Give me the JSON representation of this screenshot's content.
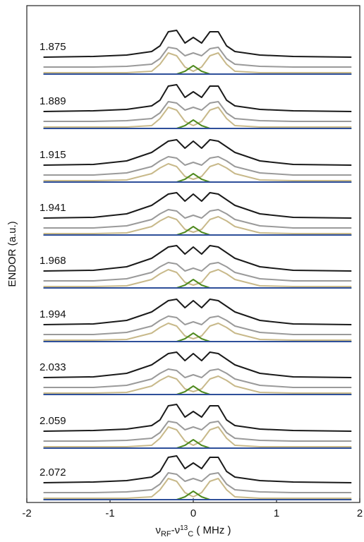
{
  "chart_data": {
    "type": "line",
    "xlabel_parts": [
      "ν",
      "RF",
      "-ν",
      "13",
      "C",
      " ( MHz )"
    ],
    "ylabel": "ENDOR (a.u.)",
    "xlim": [
      -2,
      2
    ],
    "xticks": [
      -2,
      -1,
      0,
      1,
      2
    ],
    "ylim": [
      0,
      704
    ],
    "x": [
      -1.8,
      -1.2,
      -0.8,
      -0.5,
      -0.4,
      -0.3,
      -0.2,
      -0.1,
      0,
      0.1,
      0.2,
      0.3,
      0.4,
      0.5,
      0.8,
      1.2,
      1.9
    ],
    "panels": [
      {
        "label": "1.875",
        "series": [
          {
            "color": "#1a1a1a",
            "values": [
              631,
              632,
              634,
              639,
              647,
              667,
              669,
              651,
              659,
              651,
              667,
              667,
              647,
              639,
              634,
              632,
              631
            ]
          },
          {
            "color": "#9a9a9a",
            "values": [
              617,
              617,
              618,
              621,
              629,
              645,
              643,
              633,
              637,
              633,
              643,
              645,
              629,
              621,
              618,
              617,
              617
            ]
          },
          {
            "color": "#c8b98a",
            "values": [
              609,
              609,
              609,
              611,
              621,
              637,
              633,
              617,
              611,
              617,
              633,
              637,
              621,
              611,
              609,
              609,
              609
            ]
          },
          {
            "color": "#4f8a1f",
            "values": [
              607,
              607,
              607,
              607,
              607,
              607,
              607,
              611,
              619,
              611,
              607,
              607,
              607,
              607,
              607,
              607,
              607
            ]
          },
          {
            "color": "#2e4f9a",
            "values": [
              607,
              607,
              607,
              607,
              607,
              607,
              607,
              607,
              607,
              607,
              607,
              607,
              607,
              607,
              607,
              607,
              607
            ]
          }
        ]
      },
      {
        "label": "1.889",
        "series": [
          {
            "color": "#1a1a1a",
            "values": [
              554,
              555,
              557,
              562,
              570,
              590,
              592,
              574,
              582,
              574,
              590,
              590,
              570,
              562,
              557,
              555,
              554
            ]
          },
          {
            "color": "#9a9a9a",
            "values": [
              540,
              540,
              541,
              544,
              552,
              568,
              566,
              556,
              560,
              556,
              566,
              568,
              552,
              544,
              541,
              540,
              540
            ]
          },
          {
            "color": "#c8b98a",
            "values": [
              532,
              532,
              532,
              534,
              544,
              560,
              556,
              540,
              534,
              540,
              556,
              560,
              544,
              534,
              532,
              532,
              532
            ]
          },
          {
            "color": "#4f8a1f",
            "values": [
              530,
              530,
              530,
              530,
              530,
              530,
              530,
              534,
              542,
              534,
              530,
              530,
              530,
              530,
              530,
              530,
              530
            ]
          },
          {
            "color": "#2e4f9a",
            "values": [
              530,
              530,
              530,
              530,
              530,
              530,
              530,
              530,
              530,
              530,
              530,
              530,
              530,
              530,
              530,
              530,
              530
            ]
          }
        ]
      },
      {
        "label": "1.915",
        "series": [
          {
            "color": "#1a1a1a",
            "values": [
              478,
              479,
              484,
              496,
              504,
              512,
              514,
              502,
              512,
              502,
              514,
              512,
              504,
              496,
              484,
              479,
              478
            ]
          },
          {
            "color": "#9a9a9a",
            "values": [
              464,
              464,
              467,
              476,
              484,
              490,
              488,
              478,
              482,
              478,
              488,
              490,
              484,
              476,
              467,
              464,
              464
            ]
          },
          {
            "color": "#c8b98a",
            "values": [
              456,
              456,
              457,
              466,
              474,
              480,
              476,
              462,
              458,
              462,
              476,
              480,
              474,
              466,
              457,
              456,
              456
            ]
          },
          {
            "color": "#4f8a1f",
            "values": [
              454,
              454,
              454,
              454,
              454,
              454,
              454,
              458,
              466,
              458,
              454,
              454,
              454,
              454,
              454,
              454,
              454
            ]
          },
          {
            "color": "#2e4f9a",
            "values": [
              454,
              454,
              454,
              454,
              454,
              454,
              454,
              454,
              454,
              454,
              454,
              454,
              454,
              454,
              454,
              454,
              454
            ]
          }
        ]
      },
      {
        "label": "1.941",
        "series": [
          {
            "color": "#1a1a1a",
            "values": [
              403,
              404,
              409,
              421,
              429,
              437,
              439,
              427,
              437,
              427,
              439,
              437,
              429,
              421,
              409,
              404,
              403
            ]
          },
          {
            "color": "#9a9a9a",
            "values": [
              389,
              389,
              392,
              401,
              409,
              415,
              413,
              403,
              407,
              403,
              413,
              415,
              409,
              401,
              392,
              389,
              389
            ]
          },
          {
            "color": "#c8b98a",
            "values": [
              381,
              381,
              382,
              391,
              399,
              405,
              401,
              387,
              383,
              387,
              401,
              405,
              399,
              391,
              382,
              381,
              381
            ]
          },
          {
            "color": "#4f8a1f",
            "values": [
              379,
              379,
              379,
              379,
              379,
              379,
              379,
              383,
              391,
              383,
              379,
              379,
              379,
              379,
              379,
              379,
              379
            ]
          },
          {
            "color": "#2e4f9a",
            "values": [
              379,
              379,
              379,
              379,
              379,
              379,
              379,
              379,
              379,
              379,
              379,
              379,
              379,
              379,
              379,
              379,
              379
            ]
          }
        ]
      },
      {
        "label": "1.968",
        "series": [
          {
            "color": "#1a1a1a",
            "values": [
              328,
              329,
              334,
              346,
              354,
              362,
              364,
              352,
              362,
              352,
              364,
              362,
              354,
              346,
              334,
              329,
              328
            ]
          },
          {
            "color": "#9a9a9a",
            "values": [
              314,
              314,
              317,
              326,
              334,
              340,
              338,
              328,
              332,
              328,
              338,
              340,
              334,
              326,
              317,
              314,
              314
            ]
          },
          {
            "color": "#c8b98a",
            "values": [
              306,
              306,
              307,
              316,
              324,
              330,
              326,
              312,
              308,
              312,
              326,
              330,
              324,
              316,
              307,
              306,
              306
            ]
          },
          {
            "color": "#4f8a1f",
            "values": [
              304,
              304,
              304,
              304,
              304,
              304,
              304,
              308,
              316,
              308,
              304,
              304,
              304,
              304,
              304,
              304,
              304
            ]
          },
          {
            "color": "#2e4f9a",
            "values": [
              304,
              304,
              304,
              304,
              304,
              304,
              304,
              304,
              304,
              304,
              304,
              304,
              304,
              304,
              304,
              304,
              304
            ]
          }
        ]
      },
      {
        "label": "1.994",
        "series": [
          {
            "color": "#1a1a1a",
            "values": [
              252,
              253,
              258,
              270,
              278,
              286,
              288,
              276,
              286,
              276,
              288,
              286,
              278,
              270,
              258,
              253,
              252
            ]
          },
          {
            "color": "#9a9a9a",
            "values": [
              238,
              238,
              241,
              250,
              258,
              264,
              262,
              252,
              256,
              252,
              262,
              264,
              258,
              250,
              241,
              238,
              238
            ]
          },
          {
            "color": "#c8b98a",
            "values": [
              230,
              230,
              231,
              240,
              248,
              254,
              250,
              236,
              232,
              236,
              250,
              254,
              248,
              240,
              231,
              230,
              230
            ]
          },
          {
            "color": "#4f8a1f",
            "values": [
              228,
              228,
              228,
              228,
              228,
              228,
              228,
              232,
              240,
              232,
              228,
              228,
              228,
              228,
              228,
              228,
              228
            ]
          },
          {
            "color": "#2e4f9a",
            "values": [
              228,
              228,
              228,
              228,
              228,
              228,
              228,
              228,
              228,
              228,
              228,
              228,
              228,
              228,
              228,
              228,
              228
            ]
          }
        ]
      },
      {
        "label": "2.033",
        "series": [
          {
            "color": "#1a1a1a",
            "values": [
              177,
              178,
              183,
              195,
              203,
              211,
              213,
              201,
              211,
              201,
              213,
              211,
              203,
              195,
              183,
              178,
              177
            ]
          },
          {
            "color": "#9a9a9a",
            "values": [
              163,
              163,
              166,
              175,
              183,
              189,
              187,
              177,
              181,
              177,
              187,
              189,
              183,
              175,
              166,
              163,
              163
            ]
          },
          {
            "color": "#c8b98a",
            "values": [
              155,
              155,
              156,
              165,
              173,
              179,
              175,
              161,
              157,
              161,
              175,
              179,
              173,
              165,
              156,
              155,
              155
            ]
          },
          {
            "color": "#4f8a1f",
            "values": [
              153,
              153,
              153,
              153,
              153,
              153,
              153,
              157,
              165,
              157,
              153,
              153,
              153,
              153,
              153,
              153,
              153
            ]
          },
          {
            "color": "#2e4f9a",
            "values": [
              153,
              153,
              153,
              153,
              153,
              153,
              153,
              153,
              153,
              153,
              153,
              153,
              153,
              153,
              153,
              153,
              153
            ]
          }
        ]
      },
      {
        "label": "2.059",
        "series": [
          {
            "color": "#1a1a1a",
            "values": [
              101,
              102,
              104,
              109,
              117,
              137,
              139,
              121,
              129,
              121,
              137,
              137,
              117,
              109,
              104,
              102,
              101
            ]
          },
          {
            "color": "#9a9a9a",
            "values": [
              87,
              87,
              88,
              91,
              99,
              115,
              113,
              103,
              107,
              103,
              113,
              115,
              99,
              91,
              88,
              87,
              87
            ]
          },
          {
            "color": "#c8b98a",
            "values": [
              79,
              79,
              79,
              81,
              91,
              107,
              103,
              87,
              81,
              87,
              103,
              107,
              91,
              81,
              79,
              79,
              79
            ]
          },
          {
            "color": "#4f8a1f",
            "values": [
              77,
              77,
              77,
              77,
              77,
              77,
              77,
              81,
              89,
              81,
              77,
              77,
              77,
              77,
              77,
              77,
              77
            ]
          },
          {
            "color": "#2e4f9a",
            "values": [
              77,
              77,
              77,
              77,
              77,
              77,
              77,
              77,
              77,
              77,
              77,
              77,
              77,
              77,
              77,
              77,
              77
            ]
          }
        ]
      },
      {
        "label": "2.072",
        "series": [
          {
            "color": "#1a1a1a",
            "values": [
              28,
              29,
              31,
              36,
              44,
              64,
              66,
              48,
              56,
              48,
              64,
              64,
              44,
              36,
              31,
              29,
              28
            ]
          },
          {
            "color": "#9a9a9a",
            "values": [
              14,
              14,
              15,
              18,
              26,
              42,
              40,
              30,
              34,
              30,
              40,
              42,
              26,
              18,
              15,
              14,
              14
            ]
          },
          {
            "color": "#c8b98a",
            "values": [
              6,
              6,
              6,
              8,
              18,
              34,
              30,
              14,
              8,
              14,
              30,
              34,
              18,
              8,
              6,
              6,
              6
            ]
          },
          {
            "color": "#4f8a1f",
            "values": [
              4,
              4,
              4,
              4,
              4,
              4,
              4,
              8,
              16,
              8,
              4,
              4,
              4,
              4,
              4,
              4,
              4
            ]
          },
          {
            "color": "#2e4f9a",
            "values": [
              4,
              4,
              4,
              4,
              4,
              4,
              4,
              4,
              4,
              4,
              4,
              4,
              4,
              4,
              4,
              4,
              4
            ]
          }
        ]
      }
    ]
  }
}
